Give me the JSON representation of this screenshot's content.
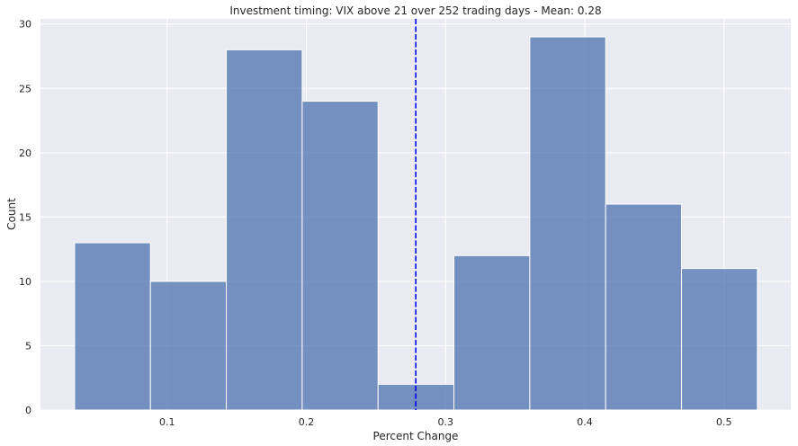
{
  "chart_data": {
    "type": "bar",
    "subtype": "histogram",
    "title": "Investment timing: VIX above 21 over 252 trading days - Mean: 0.28",
    "xlabel": "Percent Change",
    "ylabel": "Count",
    "bin_edges": [
      0.0335,
      0.088,
      0.1425,
      0.197,
      0.2515,
      0.306,
      0.3605,
      0.415,
      0.4695,
      0.524
    ],
    "values": [
      13,
      10,
      28,
      24,
      2,
      12,
      29,
      16,
      11
    ],
    "mean": 0.2786,
    "mean_line_style": "dashed",
    "xlim": [
      0.009,
      0.548
    ],
    "ylim": [
      0,
      30.4
    ],
    "xticks": [
      0.1,
      0.2,
      0.3,
      0.4,
      0.5
    ],
    "xtick_labels": [
      "0.1",
      "0.2",
      "0.3",
      "0.4",
      "0.5"
    ],
    "yticks": [
      0,
      5,
      10,
      15,
      20,
      25,
      30
    ],
    "ytick_labels": [
      "0",
      "5",
      "10",
      "15",
      "20",
      "25",
      "30"
    ],
    "grid": true,
    "colors": {
      "bar_fill": "#4c72b0",
      "bar_edge": "#ffffff",
      "mean_line": "#0000ff",
      "plot_background": "#eaeaf2",
      "grid": "#ffffff"
    }
  }
}
